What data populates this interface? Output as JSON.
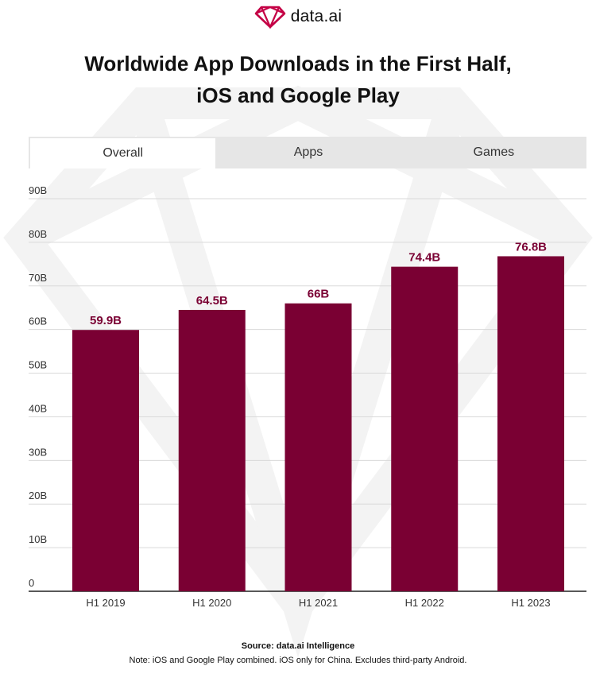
{
  "brand": {
    "logo_text": "data.ai",
    "accent_color": "#7a0033",
    "logo_icon": "diamond-logo-icon"
  },
  "title": {
    "line1": "Worldwide App Downloads in the First Half,",
    "line2": "iOS and Google Play"
  },
  "tabs": [
    {
      "label": "Overall",
      "active": true
    },
    {
      "label": "Apps",
      "active": false
    },
    {
      "label": "Games",
      "active": false
    }
  ],
  "chart_data": {
    "type": "bar",
    "categories": [
      "H1 2019",
      "H1 2020",
      "H1 2021",
      "H1 2022",
      "H1 2023"
    ],
    "values": [
      59.9,
      64.5,
      66,
      74.4,
      76.8
    ],
    "data_labels": [
      "59.9B",
      "64.5B",
      "66B",
      "74.4B",
      "76.8B"
    ],
    "ylim": [
      0,
      90
    ],
    "yticks": [
      0,
      10,
      20,
      30,
      40,
      50,
      60,
      70,
      80,
      90
    ],
    "ytick_labels": [
      "0",
      "10B",
      "20B",
      "30B",
      "40B",
      "50B",
      "60B",
      "70B",
      "80B",
      "90B"
    ],
    "grid": true,
    "bar_color": "#7a0033",
    "xlabel": "",
    "ylabel": ""
  },
  "footer": {
    "source": "Source: data.ai Intelligence",
    "note": "Note: iOS and Google Play combined. iOS only for China. Excludes third-party Android."
  }
}
